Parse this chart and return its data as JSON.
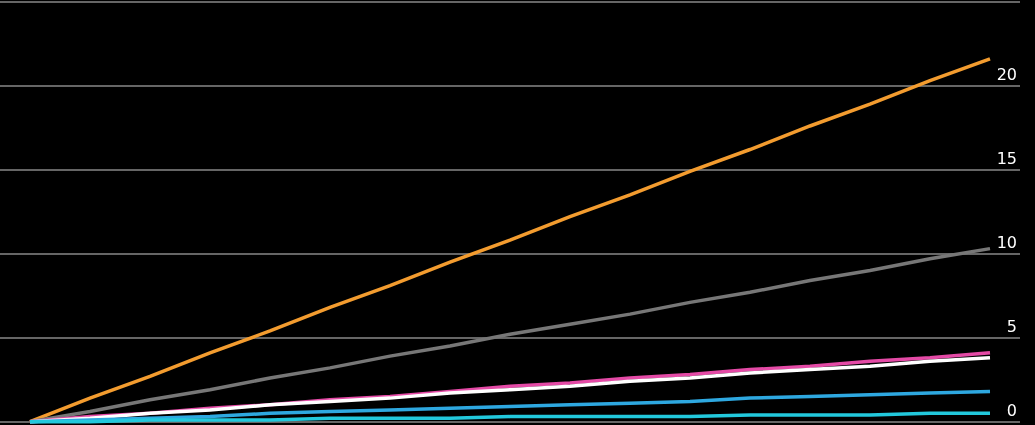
{
  "chart_data": {
    "type": "line",
    "categories": [
      null,
      null,
      null,
      null,
      null,
      null,
      null,
      null,
      null,
      null,
      null,
      null,
      null,
      null,
      null,
      null,
      null
    ],
    "series": [
      {
        "color": "#f39c2f",
        "values": [
          0,
          1.4,
          2.7,
          4.1,
          5.4,
          6.8,
          8.1,
          9.5,
          10.8,
          12.2,
          13.5,
          14.9,
          16.2,
          17.6,
          18.9,
          20.3,
          21.6
        ]
      },
      {
        "color": "#777777",
        "values": [
          0,
          0.6,
          1.3,
          1.9,
          2.6,
          3.2,
          3.9,
          4.5,
          5.2,
          5.8,
          6.4,
          7.1,
          7.7,
          8.4,
          9.0,
          9.7,
          10.3
        ]
      },
      {
        "color": "#e44aa6",
        "values": [
          0,
          0.3,
          0.5,
          0.8,
          1.0,
          1.3,
          1.5,
          1.8,
          2.1,
          2.3,
          2.6,
          2.8,
          3.1,
          3.3,
          3.6,
          3.8,
          4.1
        ]
      },
      {
        "color": "#ffffff",
        "values": [
          0,
          0.2,
          0.5,
          0.7,
          1.0,
          1.2,
          1.4,
          1.7,
          1.9,
          2.1,
          2.4,
          2.6,
          2.9,
          3.1,
          3.3,
          3.6,
          3.8
        ]
      },
      {
        "color": "#2ea8e0",
        "values": [
          0,
          0.1,
          0.2,
          0.3,
          0.5,
          0.6,
          0.7,
          0.8,
          0.9,
          1.0,
          1.1,
          1.2,
          1.4,
          1.5,
          1.6,
          1.7,
          1.8
        ]
      },
      {
        "color": "#22c8dc",
        "values": [
          0,
          0,
          0.1,
          0.1,
          0.1,
          0.2,
          0.2,
          0.2,
          0.3,
          0.3,
          0.3,
          0.3,
          0.4,
          0.4,
          0.4,
          0.5,
          0.5
        ]
      }
    ],
    "ylim": [
      0,
      25
    ],
    "yticks": [
      0,
      5,
      10,
      15,
      20,
      {
        "value": 25,
        "label": null
      }
    ],
    "grid": "y",
    "marker": "none",
    "line_style": "solid",
    "tick_labels": "y"
  }
}
